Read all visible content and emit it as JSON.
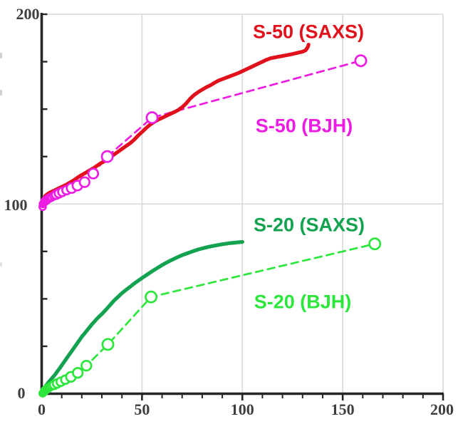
{
  "chart_data": {
    "type": "line",
    "title": "",
    "xlabel": "",
    "ylabel": "",
    "xlim": [
      0,
      200
    ],
    "ylim": [
      0,
      200
    ],
    "x_major_ticks": [
      0,
      50,
      100,
      150,
      200
    ],
    "x_tick_labels": [
      "0",
      "50",
      "100",
      "150",
      "200"
    ],
    "x_minor_tick_step": 10,
    "y_labeled_ticks": [
      200,
      100,
      0
    ],
    "y_tick_labels": [
      "200",
      "100",
      "0"
    ],
    "y_minor_tick_step": 25,
    "grid": {
      "vertical_x": [
        50,
        100,
        150,
        200
      ],
      "horizontal_y": [
        100,
        200
      ],
      "color": "#d8d8d8"
    },
    "axis_color": "#262626",
    "tick_label_color": "#3e3e3e",
    "legend_position": "inline-annotations",
    "series": [
      {
        "name": "S-50 (SAXS)",
        "sample": "S-50",
        "method": "SAXS",
        "style": "solid",
        "markers": false,
        "color": "#e0111c",
        "label_anchor": {
          "x": 133,
          "y": 191
        },
        "points": [
          [
            0,
            99
          ],
          [
            0.5,
            101.5
          ],
          [
            1,
            103
          ],
          [
            2,
            104.5
          ],
          [
            3,
            105.3
          ],
          [
            4,
            106
          ],
          [
            5,
            106.5
          ],
          [
            6.5,
            107.2
          ],
          [
            8,
            108
          ],
          [
            10,
            109
          ],
          [
            12,
            110
          ],
          [
            14,
            111.2
          ],
          [
            16,
            112.5
          ],
          [
            18,
            114
          ],
          [
            20,
            115.3
          ],
          [
            22,
            116.5
          ],
          [
            24,
            117.8
          ],
          [
            26,
            119
          ],
          [
            28,
            120.5
          ],
          [
            30,
            121.8
          ],
          [
            32,
            123
          ],
          [
            34,
            124.5
          ],
          [
            36,
            126
          ],
          [
            38,
            127.5
          ],
          [
            40,
            129
          ],
          [
            42,
            130.5
          ],
          [
            44,
            132
          ],
          [
            46,
            133.8
          ],
          [
            48,
            136
          ],
          [
            50,
            138
          ],
          [
            52,
            140
          ],
          [
            54,
            141.8
          ],
          [
            56,
            143.2
          ],
          [
            58,
            144.4
          ],
          [
            60,
            145.4
          ],
          [
            62,
            146.4
          ],
          [
            64,
            147.4
          ],
          [
            66,
            148.4
          ],
          [
            68,
            149.5
          ],
          [
            70,
            151
          ],
          [
            72,
            153
          ],
          [
            74,
            155.5
          ],
          [
            76,
            157.5
          ],
          [
            78,
            159
          ],
          [
            80,
            160.3
          ],
          [
            82,
            161.5
          ],
          [
            84,
            162.5
          ],
          [
            86,
            163.8
          ],
          [
            88,
            165
          ],
          [
            90,
            165.8
          ],
          [
            92,
            166.6
          ],
          [
            94,
            167.4
          ],
          [
            96,
            168.2
          ],
          [
            98,
            169
          ],
          [
            100,
            170
          ],
          [
            102,
            171
          ],
          [
            104,
            172
          ],
          [
            106,
            173
          ],
          [
            108,
            174
          ],
          [
            110,
            175
          ],
          [
            112,
            176
          ],
          [
            114,
            176.8
          ],
          [
            116,
            177.2
          ],
          [
            118,
            177.6
          ],
          [
            120,
            178
          ],
          [
            122,
            178.4
          ],
          [
            124,
            178.8
          ],
          [
            126,
            179.3
          ],
          [
            128,
            179.8
          ],
          [
            130,
            180.3
          ],
          [
            131.5,
            181
          ],
          [
            132.5,
            182.5
          ],
          [
            133,
            184
          ]
        ]
      },
      {
        "name": "S-50 (BJH)",
        "sample": "S-50",
        "method": "BJH",
        "style": "dashed",
        "markers": true,
        "color": "#ed1ce2",
        "label_anchor": {
          "x": 130.5,
          "y": 141
        },
        "points": [
          [
            0.5,
            98.5
          ],
          [
            0.6,
            100
          ],
          [
            0.8,
            100.3
          ],
          [
            1,
            100.6
          ],
          [
            1.3,
            101
          ],
          [
            1.6,
            101.4
          ],
          [
            2,
            101.8
          ],
          [
            2.4,
            102.1
          ],
          [
            2.9,
            102.5
          ],
          [
            3.5,
            102.9
          ],
          [
            4.2,
            103.3
          ],
          [
            5,
            103.7
          ],
          [
            6,
            104.3
          ],
          [
            7.2,
            104.9
          ],
          [
            8.6,
            105.6
          ],
          [
            10.3,
            106.4
          ],
          [
            12.4,
            107.3
          ],
          [
            14.9,
            108.4
          ],
          [
            17.8,
            109.7
          ],
          [
            21.4,
            111.5
          ],
          [
            25.7,
            116
          ],
          [
            32.7,
            125
          ],
          [
            55,
            145.5
          ],
          [
            159,
            175.5
          ]
        ]
      },
      {
        "name": "S-20 (SAXS)",
        "sample": "S-20",
        "method": "SAXS",
        "style": "solid",
        "markers": false,
        "color": "#13a350",
        "label_anchor": {
          "x": 133,
          "y": 89
        },
        "points": [
          [
            0,
            0.5
          ],
          [
            1,
            2.5
          ],
          [
            2,
            4
          ],
          [
            3,
            5.5
          ],
          [
            4,
            6.8
          ],
          [
            5,
            8
          ],
          [
            6,
            9.2
          ],
          [
            7,
            10.5
          ],
          [
            8,
            12
          ],
          [
            9,
            13.5
          ],
          [
            10,
            15
          ],
          [
            11,
            16.5
          ],
          [
            12,
            18
          ],
          [
            13,
            19.5
          ],
          [
            14,
            21
          ],
          [
            15,
            22.5
          ],
          [
            16,
            24
          ],
          [
            17,
            25.5
          ],
          [
            18,
            27
          ],
          [
            19,
            28.5
          ],
          [
            20,
            30
          ],
          [
            21,
            31.3
          ],
          [
            22,
            32.6
          ],
          [
            23,
            33.9
          ],
          [
            24,
            35.2
          ],
          [
            25,
            36.5
          ],
          [
            26,
            37.7
          ],
          [
            27,
            38.9
          ],
          [
            28,
            40
          ],
          [
            29,
            41
          ],
          [
            30,
            42
          ],
          [
            32,
            44.3
          ],
          [
            34,
            46.6
          ],
          [
            36,
            49
          ],
          [
            38,
            51
          ],
          [
            40,
            53
          ],
          [
            42,
            54.7
          ],
          [
            44,
            56.3
          ],
          [
            46,
            58
          ],
          [
            48,
            59.5
          ],
          [
            50,
            61
          ],
          [
            52,
            62.4
          ],
          [
            54,
            63.8
          ],
          [
            56,
            65.2
          ],
          [
            58,
            66.5
          ],
          [
            60,
            67.8
          ],
          [
            62,
            69
          ],
          [
            64,
            70.1
          ],
          [
            66,
            71.1
          ],
          [
            68,
            72.1
          ],
          [
            70,
            73
          ],
          [
            72,
            73.8
          ],
          [
            74,
            74.6
          ],
          [
            76,
            75.3
          ],
          [
            78,
            76
          ],
          [
            80,
            76.6
          ],
          [
            82,
            77.1
          ],
          [
            84,
            77.6
          ],
          [
            86,
            78
          ],
          [
            88,
            78.4
          ],
          [
            90,
            78.8
          ],
          [
            92,
            79.1
          ],
          [
            94,
            79.4
          ],
          [
            96,
            79.6
          ],
          [
            98,
            79.8
          ],
          [
            100,
            80
          ]
        ]
      },
      {
        "name": "S-20 (BJH)",
        "sample": "S-20",
        "method": "BJH",
        "style": "dashed",
        "markers": true,
        "color": "#2ce63b",
        "label_anchor": {
          "x": 130,
          "y": 48.5
        },
        "points": [
          [
            0.5,
            0.2
          ],
          [
            0.6,
            0.3
          ],
          [
            0.8,
            0.6
          ],
          [
            1,
            0.9
          ],
          [
            1.3,
            1.2
          ],
          [
            1.6,
            1.6
          ],
          [
            2,
            2
          ],
          [
            2.4,
            2.3
          ],
          [
            2.9,
            2.7
          ],
          [
            3.5,
            3.1
          ],
          [
            4.2,
            3.6
          ],
          [
            5,
            4.1
          ],
          [
            6.2,
            4.7
          ],
          [
            7.7,
            5.4
          ],
          [
            9.5,
            6.3
          ],
          [
            11.8,
            7.4
          ],
          [
            14.6,
            8.9
          ],
          [
            18,
            11
          ],
          [
            22.3,
            14.8
          ],
          [
            33,
            26
          ],
          [
            54.5,
            51
          ],
          [
            166,
            79
          ]
        ]
      }
    ]
  }
}
